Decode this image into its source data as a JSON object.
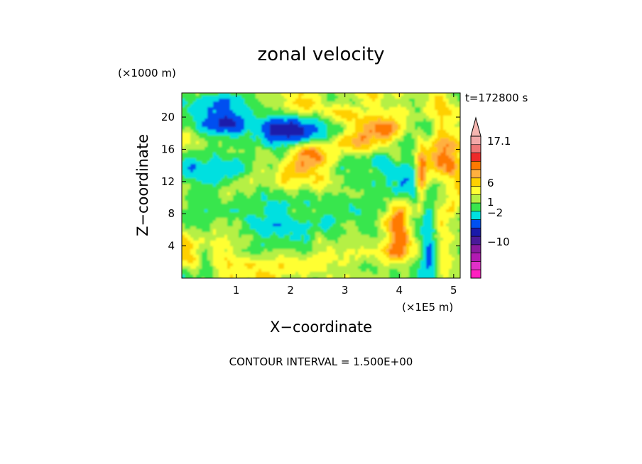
{
  "chart_data": {
    "type": "heatmap",
    "title": "zonal velocity",
    "xlabel": "X−coordinate",
    "ylabel": "Z−coordinate",
    "x_unit": "(×1E5 m)",
    "y_unit": "(×1000 m)",
    "time_label": "t=172800 s",
    "footer": "CONTOUR INTERVAL = 1.500E+00",
    "xlim": [
      0,
      5.12
    ],
    "ylim": [
      0,
      23
    ],
    "x_ticks": [
      "1",
      "2",
      "3",
      "4",
      "5"
    ],
    "y_ticks": [
      "4",
      "8",
      "12",
      "16",
      "20"
    ],
    "colorbar": {
      "labels": [
        "17.1",
        "6",
        "1",
        "−2",
        "−10"
      ],
      "colors": [
        "#f2a8a8",
        "#ee7777",
        "#ee2a2a",
        "#ff7a00",
        "#ffb040",
        "#ffd000",
        "#ffff33",
        "#b5f045",
        "#39e64d",
        "#00e0e0",
        "#0050f0",
        "#1a1aaa",
        "#4a1a9a",
        "#8a1aa0",
        "#b21ab2",
        "#e030c8",
        "#ff20c0"
      ]
    },
    "grid": false,
    "legend": "right"
  }
}
